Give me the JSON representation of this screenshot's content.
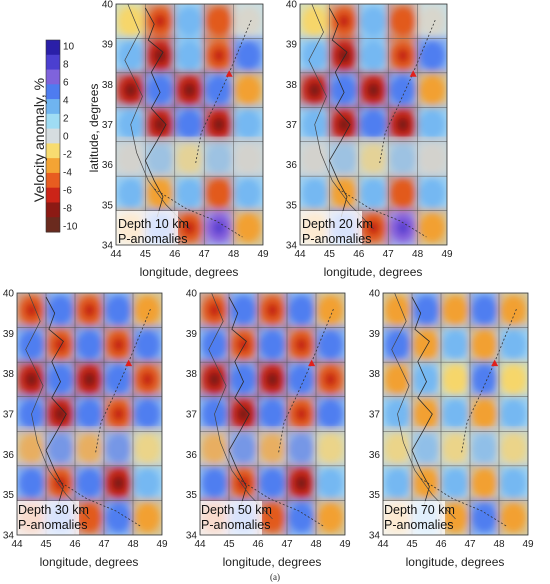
{
  "caption": "(a)",
  "colorbar": {
    "label": "Velocity anomaly, %",
    "ticks": [
      10,
      8,
      6,
      4,
      2,
      0,
      -2,
      -4,
      -6,
      -8,
      -10
    ],
    "colors": [
      "#2a1fa8",
      "#4b3fd0",
      "#7f63dc",
      "#4e7cf0",
      "#6fb4f0",
      "#9fdcf4",
      "#d6dde0",
      "#f8dc70",
      "#f4a434",
      "#e85c20",
      "#cc2418",
      "#8c1a14",
      "#6a2a1e"
    ]
  },
  "chart_data": [
    {
      "type": "heatmap",
      "annotation": "Depth 10 km",
      "annotation2": "P-anomalies",
      "xlabel": "longitude, degrees",
      "ylabel": "latitude, degrees",
      "xlim": [
        44,
        49
      ],
      "ylim": [
        34,
        40
      ],
      "x_ticks": [
        "44",
        "45",
        "46",
        "47",
        "48",
        "49"
      ],
      "y_ticks": [
        "34",
        "35",
        "36",
        "37",
        "38",
        "39",
        "40"
      ]
    },
    {
      "type": "heatmap",
      "annotation": "Depth 20 km",
      "annotation2": "P-anomalies",
      "xlabel": "longitude, degrees",
      "xlim": [
        44,
        49
      ],
      "ylim": [
        34,
        40
      ],
      "x_ticks": [
        "44",
        "45",
        "46",
        "47",
        "48",
        "49"
      ],
      "y_ticks": [
        "34",
        "35",
        "36",
        "37",
        "38",
        "39",
        "40"
      ]
    },
    {
      "type": "heatmap",
      "annotation": "Depth 30 km",
      "annotation2": "P-anomalies",
      "xlabel": "longitude, degrees",
      "xlim": [
        44,
        49
      ],
      "ylim": [
        34,
        40
      ],
      "x_ticks": [
        "44",
        "45",
        "46",
        "47",
        "48",
        "49"
      ],
      "y_ticks": [
        "34",
        "35",
        "36",
        "37",
        "38",
        "39",
        "40"
      ]
    },
    {
      "type": "heatmap",
      "annotation": "Depth 50 km",
      "annotation2": "P-anomalies",
      "xlabel": "longitude, degrees",
      "xlim": [
        44,
        49
      ],
      "ylim": [
        34,
        40
      ],
      "x_ticks": [
        "44",
        "45",
        "46",
        "47",
        "48",
        "49"
      ],
      "y_ticks": [
        "34",
        "35",
        "36",
        "37",
        "38",
        "39",
        "40"
      ]
    },
    {
      "type": "heatmap",
      "annotation": "Depth 70 km",
      "annotation2": "P-anomalies",
      "xlabel": "longitude, degrees",
      "xlim": [
        44,
        49
      ],
      "ylim": [
        34,
        40
      ],
      "x_ticks": [
        "44",
        "45",
        "46",
        "47",
        "48",
        "49"
      ],
      "y_ticks": [
        "34",
        "35",
        "36",
        "37",
        "38",
        "39",
        "40"
      ]
    }
  ]
}
